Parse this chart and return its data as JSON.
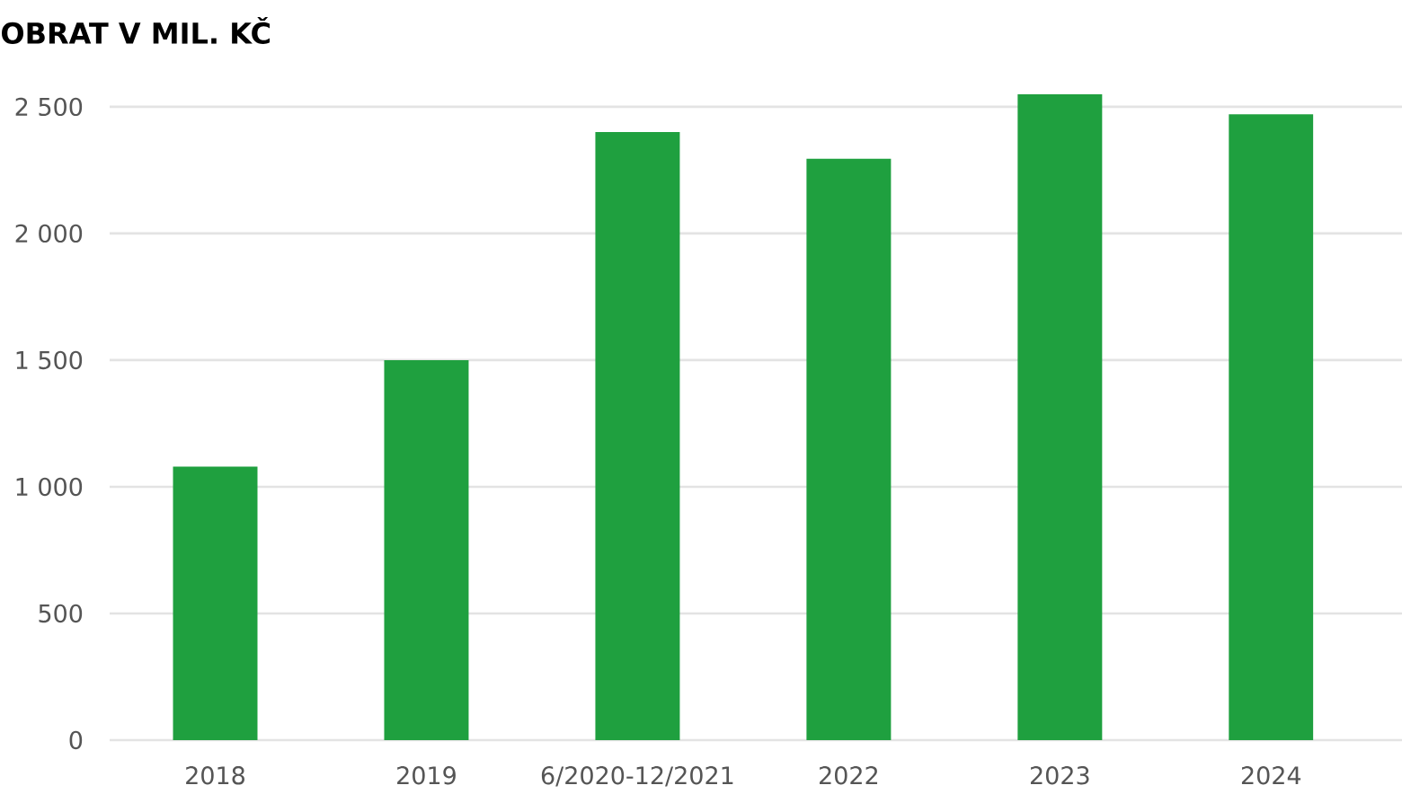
{
  "chart_data": {
    "type": "bar",
    "title": "OBRAT V MIL. KČ",
    "categories": [
      "2018",
      "2019",
      "6/2020-12/2021",
      "2022",
      "2023",
      "2024"
    ],
    "values": [
      1080,
      1500,
      2400,
      2295,
      2550,
      2470
    ],
    "color": "#1fa03f",
    "ylim": [
      0,
      2550
    ],
    "yticks": [
      0,
      500,
      {
        "value": 1000,
        "label": "1 000"
      },
      {
        "value": 1500,
        "label": "1 500"
      },
      {
        "value": 2000,
        "label": "2 000"
      },
      {
        "value": 2500,
        "label": "2 500"
      }
    ],
    "grid": "y"
  }
}
